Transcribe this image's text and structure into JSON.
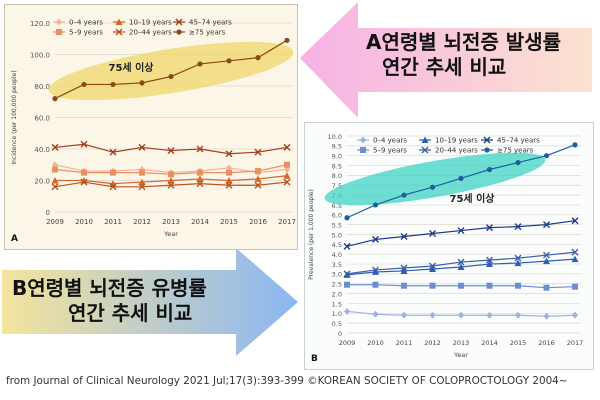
{
  "annotations": {
    "a_title_line1": "A연령별 뇌전증 발생률",
    "a_title_line2": "연간 추세 비교",
    "b_title_line1": "B연령별 뇌전증 유병률",
    "b_title_line2": "연간 추세 비교",
    "ellipse_label": "75세 이상",
    "caption": "from Journal of Clinical Neurology 2021 Jul;17(3):393-399 ©KOREAN SOCIETY OF COLOPROCTOLOGY 2004~"
  },
  "chart_data": [
    {
      "panel": "A",
      "type": "line",
      "xlabel": "Year",
      "ylabel": "Incidence (per 100,000 people)",
      "x": [
        2009,
        2010,
        2011,
        2012,
        2013,
        2014,
        2015,
        2016,
        2017
      ],
      "ylim": [
        0,
        120
      ],
      "yticks": [
        "0",
        "20.0",
        "40.0",
        "60.0",
        "80.0",
        "100.0",
        "120.0"
      ],
      "grid": true,
      "legend_position": "top-left",
      "series": [
        {
          "name": "0–4 years",
          "color": "#f0b59a",
          "marker": "diamond",
          "values": [
            30,
            26,
            26,
            27,
            25,
            26,
            28,
            25,
            27
          ]
        },
        {
          "name": "5–9 years",
          "color": "#e8905f",
          "marker": "square",
          "values": [
            27,
            25,
            25,
            25,
            24,
            25,
            25,
            26,
            30
          ]
        },
        {
          "name": "10–19 years",
          "color": "#d4652c",
          "marker": "triangle",
          "values": [
            20,
            20,
            18,
            19,
            20,
            21,
            20,
            21,
            23
          ]
        },
        {
          "name": "20–44 years",
          "color": "#b9521c",
          "marker": "x",
          "values": [
            16,
            19,
            16,
            16,
            17,
            18,
            17,
            17,
            19
          ]
        },
        {
          "name": "45–74 years",
          "color": "#a3401a",
          "marker": "x",
          "values": [
            41,
            43,
            38,
            41,
            39,
            40,
            37,
            38,
            41
          ]
        },
        {
          "name": "≥75 years",
          "color": "#8a4a14",
          "marker": "circle",
          "values": [
            72,
            81,
            81,
            82,
            86,
            94,
            96,
            98,
            109
          ]
        }
      ]
    },
    {
      "panel": "B",
      "type": "line",
      "xlabel": "Year",
      "ylabel": "Prevalence (per 1,000 people)",
      "x": [
        2009,
        2010,
        2011,
        2012,
        2013,
        2014,
        2015,
        2016,
        2017
      ],
      "ylim": [
        0,
        10
      ],
      "yticks": [
        "0",
        "0.5",
        "1.0",
        "1.5",
        "2.0",
        "2.5",
        "3.0",
        "3.5",
        "4.0",
        "4.5",
        "5.0",
        "5.5",
        "6.0",
        "6.5",
        "7.0",
        "7.5",
        "8.0",
        "8.5",
        "9.0",
        "9.5",
        "10.0"
      ],
      "grid": true,
      "legend_position": "top-left",
      "series": [
        {
          "name": "0–4 years",
          "color": "#9bb4de",
          "marker": "diamond",
          "values": [
            1.1,
            0.95,
            0.9,
            0.9,
            0.9,
            0.9,
            0.9,
            0.85,
            0.9
          ]
        },
        {
          "name": "5–9 years",
          "color": "#6b8ed0",
          "marker": "square",
          "values": [
            2.45,
            2.45,
            2.4,
            2.4,
            2.4,
            2.4,
            2.4,
            2.3,
            2.35
          ]
        },
        {
          "name": "10–19 years",
          "color": "#2d5fb0",
          "marker": "triangle",
          "values": [
            2.95,
            3.1,
            3.15,
            3.25,
            3.35,
            3.5,
            3.55,
            3.65,
            3.75
          ]
        },
        {
          "name": "20–44 years",
          "color": "#3b5fa6",
          "marker": "x",
          "values": [
            3.0,
            3.2,
            3.3,
            3.4,
            3.6,
            3.7,
            3.8,
            3.95,
            4.1
          ]
        },
        {
          "name": "45–74 years",
          "color": "#1e3a8a",
          "marker": "x",
          "values": [
            4.4,
            4.75,
            4.9,
            5.05,
            5.2,
            5.35,
            5.4,
            5.5,
            5.7
          ]
        },
        {
          "name": "≥75 years",
          "color": "#1f5fa0",
          "marker": "circle",
          "values": [
            5.85,
            6.5,
            7.0,
            7.4,
            7.85,
            8.3,
            8.65,
            9.0,
            9.55
          ]
        }
      ]
    }
  ],
  "colors": {
    "arrow_pink": "#f48fd6",
    "arrow_blue": "#6fa3f2",
    "ellipse_gold": "#f0d76a",
    "ellipse_teal": "#3fd3c4"
  }
}
